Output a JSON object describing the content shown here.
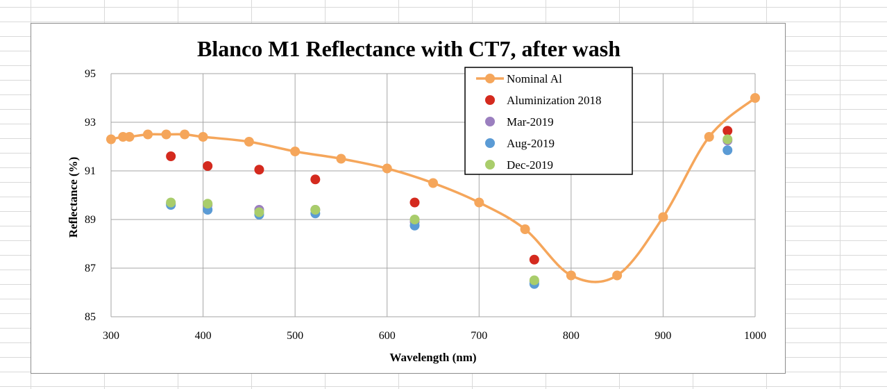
{
  "colors": {
    "nominal": "#f5a65b",
    "alum2018": "#d42a1e",
    "mar2019": "#9b7fbf",
    "aug2019": "#5b9bd5",
    "dec2019": "#a9cd6b",
    "grid": "#a6a6a6"
  },
  "chart_data": {
    "type": "scatter",
    "title": "Blanco M1 Reflectance with CT7, after wash",
    "xlabel": "Wavelength (nm)",
    "ylabel": "Reflectance  (%)",
    "xlim": [
      300,
      1000
    ],
    "ylim": [
      85,
      95
    ],
    "xticks": [
      300,
      400,
      500,
      600,
      700,
      800,
      900,
      1000
    ],
    "yticks": [
      85,
      87,
      89,
      91,
      93,
      95
    ],
    "grid": true,
    "legend_position": "top-center",
    "series": [
      {
        "name": "Nominal Al",
        "kind": "smooth-line",
        "color_key": "nominal",
        "x": [
          300,
          313,
          320,
          340,
          360,
          380,
          400,
          450,
          500,
          550,
          600,
          650,
          700,
          750,
          800,
          850,
          900,
          950,
          1000
        ],
        "y": [
          92.3,
          92.4,
          92.4,
          92.5,
          92.5,
          92.5,
          92.4,
          92.2,
          91.8,
          91.5,
          91.1,
          90.5,
          89.7,
          88.6,
          86.7,
          86.7,
          89.1,
          92.4,
          94.0
        ]
      },
      {
        "name": "Aluminization 2018",
        "kind": "marker",
        "color_key": "alum2018",
        "x": [
          365,
          405,
          461,
          522,
          630,
          760,
          970
        ],
        "y": [
          91.6,
          91.2,
          91.05,
          90.65,
          89.7,
          87.35,
          92.65
        ]
      },
      {
        "name": "Mar-2019",
        "kind": "marker",
        "color_key": "mar2019",
        "x": [
          365,
          405,
          461,
          522,
          630,
          760,
          970
        ],
        "y": [
          89.65,
          89.6,
          89.4,
          89.4,
          88.9,
          86.45,
          92.25
        ]
      },
      {
        "name": "Aug-2019",
        "kind": "marker",
        "color_key": "aug2019",
        "x": [
          365,
          405,
          461,
          522,
          630,
          760,
          970
        ],
        "y": [
          89.6,
          89.4,
          89.2,
          89.25,
          88.75,
          86.35,
          91.85
        ]
      },
      {
        "name": "Dec-2019",
        "kind": "marker",
        "color_key": "dec2019",
        "x": [
          365,
          405,
          461,
          522,
          630,
          760,
          970
        ],
        "y": [
          89.7,
          89.65,
          89.3,
          89.4,
          89.0,
          86.5,
          92.3
        ]
      }
    ]
  }
}
